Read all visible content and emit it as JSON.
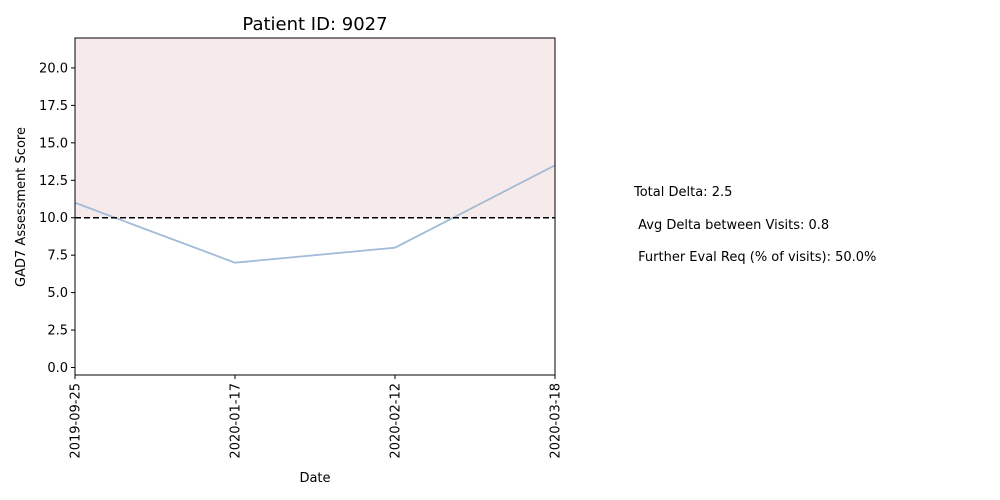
{
  "chart_data": {
    "type": "line",
    "title": "Patient ID: 9027",
    "xlabel": "Date",
    "ylabel": "GAD7 Assessment Score",
    "x": [
      "2019-09-25",
      "2020-01-17",
      "2020-02-12",
      "2020-03-18"
    ],
    "series": [
      {
        "values": [
          11,
          7,
          8,
          13.5
        ],
        "color": "#a1bcd8"
      }
    ],
    "ylim": [
      -0.5,
      22
    ],
    "yticks": [
      "0.0",
      "2.5",
      "5.0",
      "7.5",
      "10.0",
      "12.5",
      "15.0",
      "17.5",
      "20.0"
    ],
    "threshold": {
      "value": 10,
      "style": "dashed",
      "color": "#000000"
    },
    "shaded_region": {
      "from": 10,
      "to": 22,
      "color": "#f6eaea"
    },
    "grid": false
  },
  "stats": {
    "total_delta": "Total Delta: 2.5",
    "avg_delta": " Avg Delta between Visits: 0.8",
    "further_eval": " Further Eval Req (% of visits): 50.0%"
  }
}
